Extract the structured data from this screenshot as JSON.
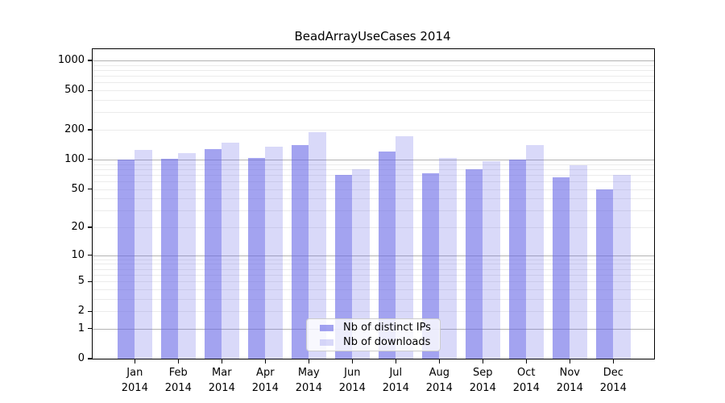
{
  "chart_data": {
    "type": "bar",
    "title": "BeadArrayUseCases 2014",
    "categories": [
      "Jan",
      "Feb",
      "Mar",
      "Apr",
      "May",
      "Jun",
      "Jul",
      "Aug",
      "Sep",
      "Oct",
      "Nov",
      "Dec"
    ],
    "year_label": "2014",
    "series": [
      {
        "name": "Nb of distinct IPs",
        "values": [
          100,
          101,
          127,
          103,
          139,
          70,
          120,
          73,
          80,
          100,
          66,
          50
        ]
      },
      {
        "name": "Nb of downloads",
        "values": [
          125,
          116,
          147,
          134,
          190,
          80,
          172,
          104,
          97,
          140,
          88,
          70
        ]
      }
    ],
    "yscale": "log10(value+1)",
    "ytick_labels": [
      "0",
      "1",
      "2",
      "5",
      "10",
      "20",
      "50",
      "100",
      "200",
      "500",
      "1000"
    ],
    "yticks": [
      0,
      1,
      2,
      5,
      10,
      20,
      50,
      100,
      200,
      500,
      1000
    ],
    "ylim": [
      0,
      1300
    ],
    "xlabel": "",
    "ylabel": "",
    "grid": "horizontal log gridlines; decade lines darker, minor lines faint",
    "legend_position": "inside plot, lower center",
    "colors": {
      "bar_base": "#6666e6",
      "bar_ips_alpha": 0.6,
      "bar_downloads_alpha": 0.25,
      "decade_gridline": "#b3b3b3",
      "minor_gridline": "#ebebeb",
      "axis": "#000000",
      "legend_border": "#cccccc"
    }
  }
}
